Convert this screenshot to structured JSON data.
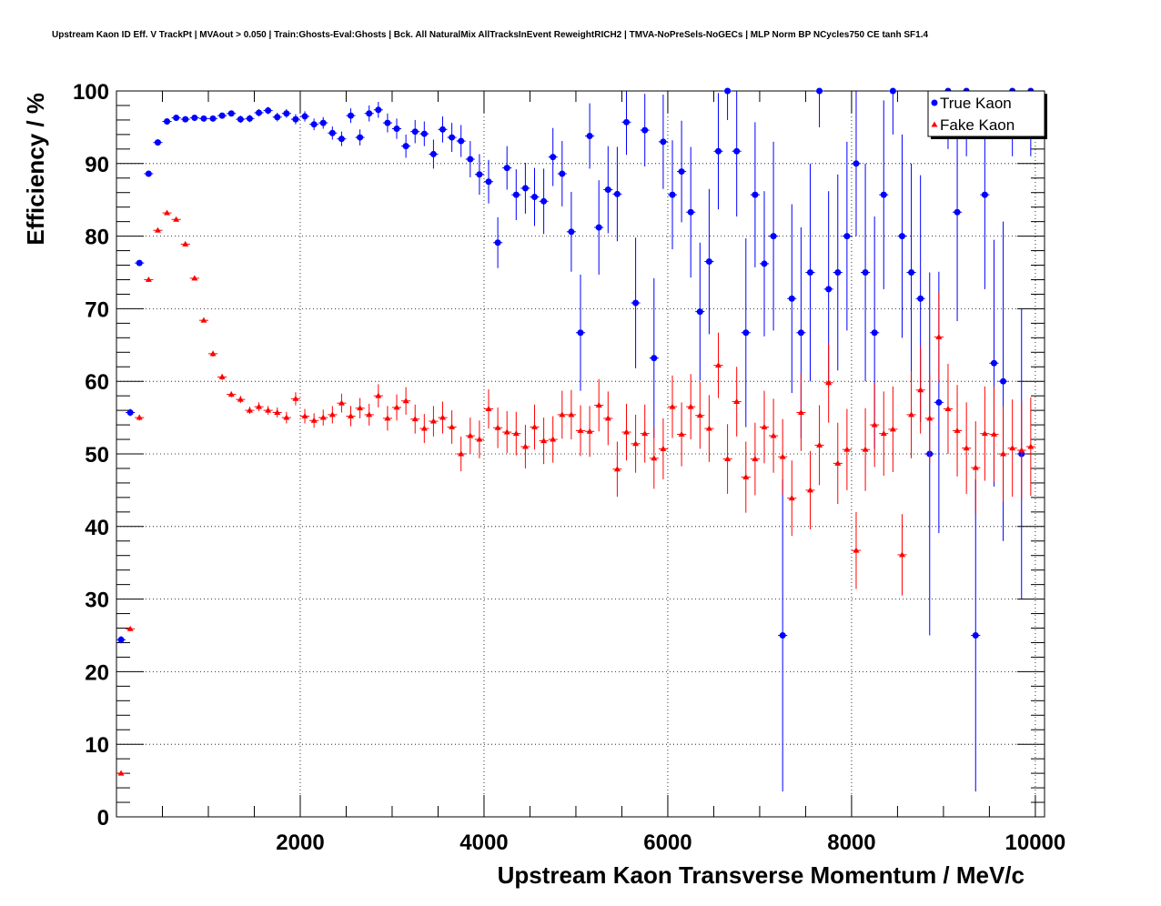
{
  "title": "Upstream Kaon ID Eff. V TrackPt | MVAout > 0.050 | Train:Ghosts-Eval:Ghosts | Bck. All NaturalMix AllTracksInEvent ReweightRICH2 | TMVA-NoPreSels-NoGECs | MLP Norm BP NCycles750 CE tanh SF1.4",
  "chart_data": {
    "type": "scatter",
    "title": "Upstream Kaon ID Eff. V TrackPt | MVAout > 0.050 | Train:Ghosts-Eval:Ghosts | Bck. All NaturalMix AllTracksInEvent ReweightRICH2 | TMVA-NoPreSels-NoGECs | MLP Norm BP NCycles750 CE tanh SF1.4",
    "xlabel": "Upstream Kaon Transverse Momentum / MeV/c",
    "ylabel": "Efficiency / %",
    "xlim": [
      0,
      10100
    ],
    "ylim": [
      0,
      100
    ],
    "x_ticks": [
      2000,
      4000,
      6000,
      8000,
      10000
    ],
    "y_ticks": [
      0,
      10,
      20,
      30,
      40,
      50,
      60,
      70,
      80,
      90,
      100
    ],
    "grid": true,
    "legend_position": "top-right",
    "series": [
      {
        "name": "True Kaon",
        "color": "#0000ff",
        "marker": "circle",
        "points": [
          [
            0,
            24.4,
            0.5
          ],
          [
            100,
            55.7,
            0.5
          ],
          [
            200,
            76.3,
            0.4
          ],
          [
            300,
            88.6,
            0.4
          ],
          [
            400,
            92.9,
            0.4
          ],
          [
            500,
            95.8,
            0.3
          ],
          [
            600,
            96.3,
            0.3
          ],
          [
            700,
            96.1,
            0.3
          ],
          [
            800,
            96.3,
            0.3
          ],
          [
            900,
            96.2,
            0.4
          ],
          [
            1000,
            96.2,
            0.4
          ],
          [
            1100,
            96.6,
            0.4
          ],
          [
            1200,
            96.9,
            0.4
          ],
          [
            1300,
            96.1,
            0.5
          ],
          [
            1400,
            96.2,
            0.5
          ],
          [
            1500,
            97.0,
            0.5
          ],
          [
            1600,
            97.3,
            0.5
          ],
          [
            1700,
            96.4,
            0.6
          ],
          [
            1800,
            96.9,
            0.6
          ],
          [
            1900,
            96.1,
            0.7
          ],
          [
            2000,
            96.5,
            0.7
          ],
          [
            2100,
            95.4,
            0.8
          ],
          [
            2200,
            95.6,
            0.8
          ],
          [
            2300,
            94.2,
            0.9
          ],
          [
            2400,
            93.4,
            1.0
          ],
          [
            2500,
            96.6,
            1.0
          ],
          [
            2600,
            93.6,
            1.1
          ],
          [
            2700,
            96.9,
            1.1
          ],
          [
            2800,
            97.4,
            1.1
          ],
          [
            2900,
            95.6,
            1.3
          ],
          [
            3000,
            94.8,
            1.4
          ],
          [
            3100,
            92.4,
            1.6
          ],
          [
            3200,
            94.4,
            1.6
          ],
          [
            3300,
            94.1,
            1.7
          ],
          [
            3400,
            91.3,
            2.0
          ],
          [
            3500,
            94.7,
            1.8
          ],
          [
            3600,
            93.6,
            2.0
          ],
          [
            3700,
            93.1,
            2.2
          ],
          [
            3800,
            90.6,
            2.5
          ],
          [
            3900,
            88.5,
            2.8
          ],
          [
            4000,
            87.5,
            3.0
          ],
          [
            4100,
            79.1,
            3.5
          ],
          [
            4200,
            89.4,
            3.0
          ],
          [
            4300,
            85.7,
            3.5
          ],
          [
            4400,
            86.6,
            3.5
          ],
          [
            4500,
            85.4,
            4.0
          ],
          [
            4600,
            84.8,
            4.5
          ],
          [
            4700,
            90.9,
            4.0
          ],
          [
            4800,
            88.6,
            4.5
          ],
          [
            4900,
            80.6,
            5.5
          ],
          [
            5000,
            66.7,
            8.0
          ],
          [
            5100,
            93.8,
            4.5
          ],
          [
            5200,
            81.2,
            6.5
          ],
          [
            5300,
            86.4,
            6.0
          ],
          [
            5400,
            85.8,
            6.5
          ],
          [
            5500,
            95.7,
            4.5
          ],
          [
            5600,
            70.8,
            9.0
          ],
          [
            5700,
            94.6,
            5.0
          ],
          [
            5800,
            63.2,
            11.0
          ],
          [
            5900,
            93.0,
            6.5
          ],
          [
            6000,
            85.7,
            7.5
          ],
          [
            6100,
            88.9,
            7.0
          ],
          [
            6200,
            83.3,
            9.0
          ],
          [
            6300,
            69.6,
            9.5
          ],
          [
            6400,
            76.5,
            10.0
          ],
          [
            6500,
            91.7,
            8.0
          ],
          [
            6600,
            100.0,
            4.0
          ],
          [
            6700,
            91.7,
            9.0
          ],
          [
            6800,
            66.7,
            13.0
          ],
          [
            6900,
            85.7,
            10.0
          ],
          [
            7000,
            76.2,
            10.0
          ],
          [
            7100,
            80.0,
            13.0
          ],
          [
            7200,
            25.0,
            21.5
          ],
          [
            7300,
            71.4,
            13.0
          ],
          [
            7400,
            66.7,
            14.5
          ],
          [
            7500,
            75.0,
            15.0
          ],
          [
            7600,
            100.0,
            5.0
          ],
          [
            7700,
            72.7,
            13.5
          ],
          [
            7800,
            75.0,
            13.5
          ],
          [
            7900,
            80.0,
            13.0
          ],
          [
            8000,
            90.0,
            10.0
          ],
          [
            8100,
            75.0,
            15.0
          ],
          [
            8200,
            66.7,
            16.0
          ],
          [
            8300,
            85.7,
            13.0
          ],
          [
            8400,
            100.0,
            6.0
          ],
          [
            8500,
            80.0,
            14.0
          ],
          [
            8600,
            75.0,
            15.0
          ],
          [
            8700,
            71.4,
            17.0
          ],
          [
            8800,
            50.0,
            25.0
          ],
          [
            8900,
            57.1,
            18.0
          ],
          [
            9000,
            100.0,
            8.0
          ],
          [
            9100,
            83.3,
            15.0
          ],
          [
            9200,
            100.0,
            9.0
          ],
          [
            9300,
            25.0,
            21.5
          ],
          [
            9400,
            85.7,
            13.0
          ],
          [
            9500,
            62.5,
            17.0
          ],
          [
            9600,
            60.0,
            22.0
          ],
          [
            9700,
            100.0,
            9.0
          ],
          [
            9800,
            50.0,
            20.0
          ],
          [
            9900,
            100.0,
            9.0
          ]
        ]
      },
      {
        "name": "Fake Kaon",
        "color": "#ff0000",
        "marker": "triangle",
        "points": [
          [
            0,
            6.0,
            0.3
          ],
          [
            100,
            25.9,
            0.3
          ],
          [
            200,
            55.0,
            0.4
          ],
          [
            300,
            74.0,
            0.3
          ],
          [
            400,
            80.8,
            0.3
          ],
          [
            500,
            83.2,
            0.3
          ],
          [
            600,
            82.3,
            0.3
          ],
          [
            700,
            78.9,
            0.3
          ],
          [
            800,
            74.2,
            0.3
          ],
          [
            900,
            68.4,
            0.3
          ],
          [
            1000,
            63.8,
            0.4
          ],
          [
            1100,
            60.6,
            0.4
          ],
          [
            1200,
            58.2,
            0.4
          ],
          [
            1300,
            57.5,
            0.5
          ],
          [
            1400,
            56.0,
            0.5
          ],
          [
            1500,
            56.5,
            0.6
          ],
          [
            1600,
            56.0,
            0.6
          ],
          [
            1700,
            55.7,
            0.7
          ],
          [
            1800,
            55.0,
            0.8
          ],
          [
            1900,
            57.6,
            0.9
          ],
          [
            2000,
            55.2,
            1.0
          ],
          [
            2100,
            54.6,
            1.0
          ],
          [
            2200,
            55.0,
            1.1
          ],
          [
            2300,
            55.4,
            1.2
          ],
          [
            2400,
            57.0,
            1.3
          ],
          [
            2500,
            55.2,
            1.4
          ],
          [
            2600,
            56.3,
            1.4
          ],
          [
            2700,
            55.4,
            1.5
          ],
          [
            2800,
            58.0,
            1.6
          ],
          [
            2900,
            54.9,
            1.7
          ],
          [
            3000,
            56.4,
            1.8
          ],
          [
            3100,
            57.3,
            1.9
          ],
          [
            3200,
            54.8,
            2.0
          ],
          [
            3300,
            53.5,
            2.0
          ],
          [
            3400,
            54.5,
            2.1
          ],
          [
            3500,
            55.0,
            2.2
          ],
          [
            3600,
            53.7,
            2.3
          ],
          [
            3700,
            50.0,
            2.4
          ],
          [
            3800,
            52.5,
            2.5
          ],
          [
            3900,
            52.0,
            2.6
          ],
          [
            4000,
            56.2,
            2.7
          ],
          [
            4100,
            53.6,
            2.8
          ],
          [
            4200,
            53.0,
            2.9
          ],
          [
            4300,
            52.8,
            3.0
          ],
          [
            4400,
            51.0,
            3.0
          ],
          [
            4500,
            53.7,
            3.1
          ],
          [
            4600,
            51.8,
            3.2
          ],
          [
            4700,
            52.0,
            3.2
          ],
          [
            4800,
            55.4,
            3.3
          ],
          [
            4900,
            55.4,
            3.4
          ],
          [
            5000,
            53.2,
            3.5
          ],
          [
            5100,
            53.1,
            3.5
          ],
          [
            5200,
            56.7,
            3.6
          ],
          [
            5300,
            54.9,
            3.7
          ],
          [
            5400,
            47.9,
            3.8
          ],
          [
            5500,
            53.0,
            3.9
          ],
          [
            5600,
            51.4,
            4.0
          ],
          [
            5700,
            52.8,
            4.0
          ],
          [
            5800,
            49.4,
            4.2
          ],
          [
            5900,
            50.7,
            4.2
          ],
          [
            6000,
            56.5,
            4.3
          ],
          [
            6100,
            52.7,
            4.4
          ],
          [
            6200,
            56.5,
            4.5
          ],
          [
            6300,
            55.3,
            4.6
          ],
          [
            6400,
            53.5,
            4.6
          ],
          [
            6500,
            62.2,
            4.5
          ],
          [
            6600,
            49.3,
            4.8
          ],
          [
            6700,
            57.2,
            4.8
          ],
          [
            6800,
            46.8,
            4.9
          ],
          [
            6900,
            49.3,
            5.0
          ],
          [
            7000,
            53.7,
            5.0
          ],
          [
            7100,
            52.5,
            5.1
          ],
          [
            7200,
            49.6,
            5.2
          ],
          [
            7300,
            43.9,
            5.2
          ],
          [
            7400,
            55.7,
            5.3
          ],
          [
            7500,
            45.0,
            5.4
          ],
          [
            7600,
            51.2,
            5.5
          ],
          [
            7700,
            59.8,
            5.5
          ],
          [
            7800,
            48.7,
            5.6
          ],
          [
            7900,
            50.6,
            5.6
          ],
          [
            8000,
            36.7,
            5.3
          ],
          [
            8100,
            50.6,
            5.7
          ],
          [
            8200,
            54.0,
            5.8
          ],
          [
            8300,
            52.8,
            5.8
          ],
          [
            8400,
            53.4,
            5.9
          ],
          [
            8500,
            36.1,
            5.6
          ],
          [
            8600,
            55.4,
            6.0
          ],
          [
            8700,
            58.8,
            6.0
          ],
          [
            8800,
            54.9,
            6.1
          ],
          [
            8900,
            66.1,
            6.2
          ],
          [
            9000,
            56.2,
            6.2
          ],
          [
            9100,
            53.2,
            6.3
          ],
          [
            9200,
            50.8,
            6.3
          ],
          [
            9300,
            48.1,
            6.4
          ],
          [
            9400,
            52.8,
            6.5
          ],
          [
            9500,
            52.7,
            6.6
          ],
          [
            9600,
            50.0,
            6.6
          ],
          [
            9700,
            50.8,
            6.7
          ],
          [
            9800,
            50.5,
            6.7
          ],
          [
            9900,
            51.0,
            6.8
          ]
        ]
      }
    ]
  }
}
